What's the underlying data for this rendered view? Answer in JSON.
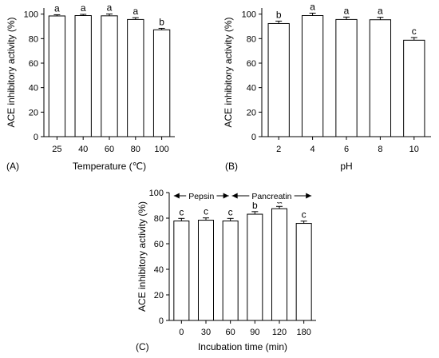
{
  "chart_data": [
    {
      "type": "bar",
      "panel_label": "(A)",
      "xlabel": "Temperature (℃)",
      "ylabel": "ACE inhibitory activity (%)",
      "categories": [
        "25",
        "40",
        "60",
        "80",
        "100"
      ],
      "values": [
        98.5,
        98.8,
        98.6,
        95.6,
        87.2
      ],
      "errors": [
        1.0,
        1.0,
        1.5,
        1.5,
        1.2
      ],
      "significance": [
        "a",
        "a",
        "a",
        "a",
        "b"
      ],
      "ylim": [
        0,
        105
      ],
      "yticks": [
        0,
        20,
        40,
        60,
        80,
        100
      ],
      "bar_color": "#ffffff",
      "edge_color": "#000000"
    },
    {
      "type": "bar",
      "panel_label": "(B)",
      "xlabel": "pH",
      "ylabel": "ACE inhibitory activity (%)",
      "categories": [
        "2",
        "4",
        "6",
        "8",
        "10"
      ],
      "values": [
        92.3,
        98.8,
        95.6,
        95.4,
        78.7
      ],
      "errors": [
        2.0,
        2.0,
        2.0,
        2.0,
        2.2
      ],
      "significance": [
        "b",
        "a",
        "a",
        "a",
        "c"
      ],
      "ylim": [
        0,
        105
      ],
      "yticks": [
        0,
        20,
        40,
        60,
        80,
        100
      ],
      "bar_color": "#ffffff",
      "edge_color": "#000000"
    },
    {
      "type": "bar",
      "panel_label": "(C)",
      "xlabel": "Incubation time (min)",
      "ylabel": "ACE inhibitory activity (%)",
      "categories": [
        "0",
        "30",
        "60",
        "90",
        "120",
        "180"
      ],
      "values": [
        77.8,
        78.4,
        77.8,
        83.1,
        87.4,
        75.9
      ],
      "errors": [
        2.0,
        1.8,
        2.0,
        2.0,
        1.8,
        1.8
      ],
      "significance": [
        "c",
        "c",
        "c",
        "b",
        "a",
        "c"
      ],
      "ylim": [
        0,
        100
      ],
      "yticks": [
        0,
        20,
        40,
        60,
        80,
        100
      ],
      "stages": [
        {
          "label": "Pepsin",
          "from": "0",
          "to": "60"
        },
        {
          "label": "Pancreatin",
          "from": "60",
          "to": "180"
        }
      ],
      "bar_color": "#ffffff",
      "edge_color": "#000000"
    }
  ]
}
